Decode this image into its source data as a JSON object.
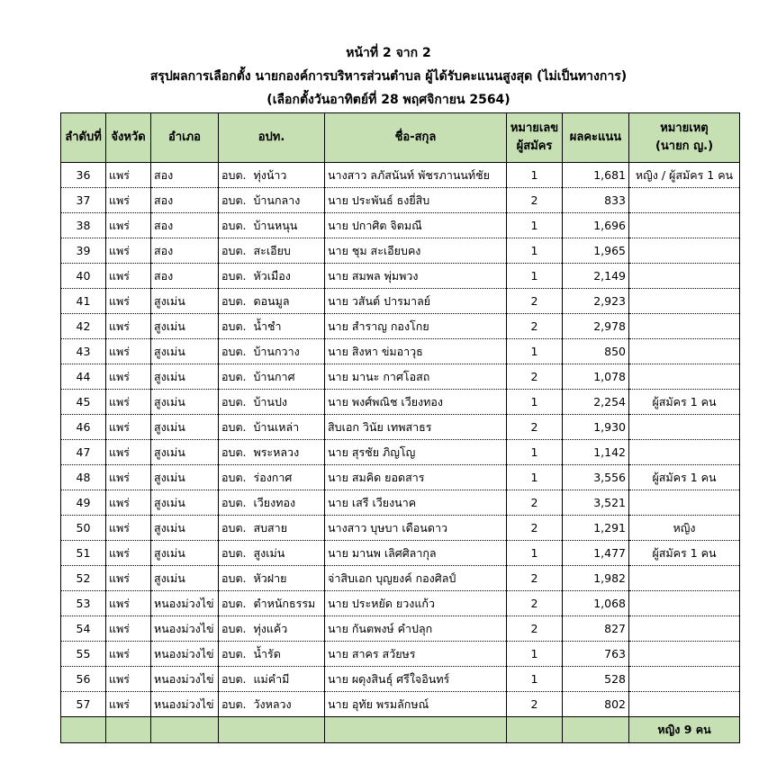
{
  "header": {
    "page": "หน้าที่ 2 จาก 2",
    "title": "สรุปผลการเลือกตั้ง นายกองค์การบริหารส่วนตำบล ผู้ได้รับคะแนนสูงสุด (ไม่เป็นทางการ)",
    "subtitle": "(เลือกตั้งวันอาทิตย์ที่ 28 พฤศจิกายน 2564)"
  },
  "table": {
    "columns": [
      [
        "ลำดับที่"
      ],
      [
        "จังหวัด"
      ],
      [
        "อำเภอ"
      ],
      [
        "อปท."
      ],
      [
        "ชื่อ-สกุล"
      ],
      [
        "หมายเลข",
        "ผู้สมัคร"
      ],
      [
        "ผลคะแนน"
      ],
      [
        "หมายเหตุ",
        "(นายก ญ.)"
      ]
    ],
    "rows": [
      [
        36,
        "แพร่",
        "สอง",
        "อบต.  ทุ่งน้าว",
        "นางสาว ลภัสนันท์ พัชรภานนท์ชัย",
        1,
        "1,681",
        "หญิง / ผู้สมัคร 1 คน"
      ],
      [
        37,
        "แพร่",
        "สอง",
        "อบต.  บ้านกลาง",
        "นาย ประพันธ์ ธงยี่สิบ",
        2,
        "833",
        null
      ],
      [
        38,
        "แพร่",
        "สอง",
        "อบต.  บ้านหนุน",
        "นาย ปกาศิต จิตมณี",
        1,
        "1,696",
        null
      ],
      [
        39,
        "แพร่",
        "สอง",
        "อบต.  สะเอียบ",
        "นาย ชุม สะเอียบคง",
        1,
        "1,965",
        null
      ],
      [
        40,
        "แพร่",
        "สอง",
        "อบต.  หัวเมือง",
        "นาย สมพล พุ่มพวง",
        1,
        "2,149",
        null
      ],
      [
        41,
        "แพร่",
        "สูงเม่น",
        "อบต.  ดอนมูล",
        "นาย วสันต์ ปารมาลย์",
        2,
        "2,923",
        null
      ],
      [
        42,
        "แพร่",
        "สูงเม่น",
        "อบต.  น้ำชำ",
        "นาย สำราญ กองโกย",
        2,
        "2,978",
        null
      ],
      [
        43,
        "แพร่",
        "สูงเม่น",
        "อบต.  บ้านกวาง",
        "นาย สิงหา ข่มอาวุธ",
        1,
        "850",
        null
      ],
      [
        44,
        "แพร่",
        "สูงเม่น",
        "อบต.  บ้านกาศ",
        "นาย มานะ กาศโอสถ",
        2,
        "1,078",
        null
      ],
      [
        45,
        "แพร่",
        "สูงเม่น",
        "อบต.  บ้านปง",
        "นาย พงศ์พณิช เวียงทอง",
        1,
        "2,254",
        "ผู้สมัคร 1 คน"
      ],
      [
        46,
        "แพร่",
        "สูงเม่น",
        "อบต.  บ้านเหล่า",
        "สิบเอก วินัย เทพสาธร",
        2,
        "1,930",
        null
      ],
      [
        47,
        "แพร่",
        "สูงเม่น",
        "อบต.  พระหลวง",
        "นาย สุรชัย ภิญโญ",
        1,
        "1,142",
        null
      ],
      [
        48,
        "แพร่",
        "สูงเม่น",
        "อบต.  ร่องกาศ",
        "นาย สมคิด ยอดสาร",
        1,
        "3,556",
        "ผู้สมัคร 1 คน"
      ],
      [
        49,
        "แพร่",
        "สูงเม่น",
        "อบต.  เวียงทอง",
        "นาย เสรี เวียงนาค",
        2,
        "3,521",
        null
      ],
      [
        50,
        "แพร่",
        "สูงเม่น",
        "อบต.  สบสาย",
        "นางสาว บุษบา เดือนดาว",
        2,
        "1,291",
        "หญิง"
      ],
      [
        51,
        "แพร่",
        "สูงเม่น",
        "อบต.  สูงเม่น",
        "นาย มานพ เลิศศิลากุล",
        1,
        "1,477",
        "ผู้สมัคร 1 คน"
      ],
      [
        52,
        "แพร่",
        "สูงเม่น",
        "อบต.  หัวฝาย",
        "จ่าสิบเอก บุญยงค์ กองศิลป์",
        2,
        "1,982",
        null
      ],
      [
        53,
        "แพร่",
        "หนองม่วงไข่",
        "อบต.  ตำหนักธรรม",
        "นาย ประหยัด ยวงแก้ว",
        2,
        "1,068",
        null
      ],
      [
        54,
        "แพร่",
        "หนองม่วงไข่",
        "อบต.  ทุ่งแค้ว",
        "นาย กันตพงษ์ คำปลุก",
        2,
        "827",
        null
      ],
      [
        55,
        "แพร่",
        "หนองม่วงไข่",
        "อบต.  น้ำรัด",
        "นาย สาคร สวัยษร",
        1,
        "763",
        null
      ],
      [
        56,
        "แพร่",
        "หนองม่วงไข่",
        "อบต.  แม่คำมี",
        "นาย ผดุงสินธุ์ ศรีใจอินทร์",
        1,
        "528",
        null
      ],
      [
        57,
        "แพร่",
        "หนองม่วงไข่",
        "อบต.  วังหลวง",
        "นาย อุทัย พรมลักษณ์",
        2,
        "802",
        null
      ]
    ],
    "footer": "หญิง 9 คน"
  }
}
